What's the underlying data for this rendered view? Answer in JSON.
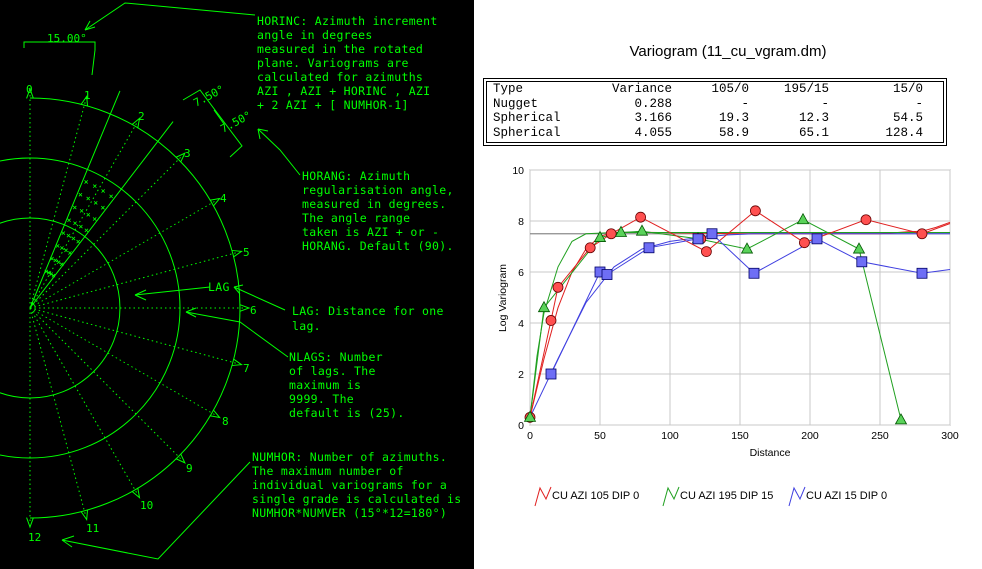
{
  "diagram": {
    "horinc_angle_label": "15.00°",
    "horang_labels": [
      "7.50°",
      "7.50°"
    ],
    "lag_label": "LAG",
    "azimuth_numbers": [
      "0",
      "1",
      "2",
      "3",
      "4",
      "5",
      "6",
      "7",
      "8",
      "9",
      "10",
      "11",
      "12"
    ],
    "horinc_text": [
      "HORINC: Azimuth increment",
      "angle in degrees",
      "measured in the rotated",
      "plane. Variograms are",
      "calculated for azimuths",
      "AZI , AZI + HORINC , AZI",
      "+ 2 AZI + [ NUMHOR-1]"
    ],
    "horang_text": [
      "HORANG: Azimuth",
      "regularisation angle,",
      "measured in degrees.",
      "The angle range",
      "taken is AZI + or -",
      "HORANG. Default (90)."
    ],
    "lag_text": [
      "LAG: Distance for one",
      "lag."
    ],
    "nlags_text": [
      "NLAGS: Number",
      "of lags. The",
      "maximum is",
      "9999. The",
      "default is (25)."
    ],
    "numhor_text": [
      "NUMHOR: Number of azimuths.",
      "The maximum number of",
      "individual variograms for a",
      "single grade is calculated is",
      "NUMHOR*NUMVER (15°*12=180°)"
    ]
  },
  "table": {
    "headers": [
      "Type",
      "Variance",
      "105/0",
      "195/15",
      "15/0"
    ],
    "rows": [
      [
        "Nugget",
        "0.288",
        "-",
        "-",
        "-"
      ],
      [
        "Spherical",
        "3.166",
        "19.3",
        "12.3",
        "54.5"
      ],
      [
        "Spherical",
        "4.055",
        "58.9",
        "65.1",
        "128.4"
      ]
    ]
  },
  "chart_data": {
    "type": "line",
    "title": "Variogram (11_cu_vgram.dm)",
    "xlabel": "Distance",
    "ylabel": "Log Variogram",
    "xlim": [
      0,
      300
    ],
    "ylim": [
      0,
      10
    ],
    "xticks": [
      0,
      50,
      100,
      150,
      200,
      250,
      300
    ],
    "yticks": [
      0,
      2,
      4,
      6,
      8,
      10
    ],
    "grid": true,
    "reference_line": 7.5,
    "legend_position": "bottom",
    "series": [
      {
        "name": "CU AZI 105 DIP 0",
        "color": "#e02020",
        "marker": "circle",
        "points": [
          [
            0,
            0.3
          ],
          [
            15,
            4.1
          ],
          [
            20,
            5.4
          ],
          [
            43,
            6.95
          ],
          [
            58,
            7.5
          ],
          [
            79,
            8.15
          ],
          [
            122,
            7.3
          ],
          [
            126,
            6.8
          ],
          [
            161,
            8.4
          ],
          [
            196,
            7.15
          ],
          [
            240,
            8.05
          ],
          [
            280,
            7.5
          ]
        ],
        "curve": [
          [
            0,
            0.3
          ],
          [
            10,
            2.6
          ],
          [
            20,
            4.6
          ],
          [
            30,
            6.0
          ],
          [
            40,
            6.9
          ],
          [
            50,
            7.4
          ],
          [
            60,
            7.55
          ],
          [
            80,
            7.56
          ],
          [
            150,
            7.5
          ],
          [
            250,
            7.5
          ],
          [
            270,
            7.58
          ],
          [
            280,
            7.6
          ],
          [
            290,
            7.75
          ],
          [
            300,
            7.95
          ]
        ]
      },
      {
        "name": "CU AZI 195 DIP 15",
        "color": "#20a020",
        "marker": "triangle",
        "points": [
          [
            0,
            0.3
          ],
          [
            10,
            4.6
          ],
          [
            50,
            7.35
          ],
          [
            65,
            7.55
          ],
          [
            80,
            7.6
          ],
          [
            120,
            7.3
          ],
          [
            155,
            6.9
          ],
          [
            195,
            8.05
          ],
          [
            235,
            6.9
          ],
          [
            265,
            0.2
          ]
        ],
        "curve": [
          [
            0,
            0.3
          ],
          [
            5,
            2.7
          ],
          [
            10,
            4.4
          ],
          [
            20,
            6.2
          ],
          [
            30,
            7.2
          ],
          [
            40,
            7.5
          ],
          [
            60,
            7.55
          ],
          [
            300,
            7.55
          ]
        ]
      },
      {
        "name": "CU AZI 15 DIP 0",
        "color": "#4040e0",
        "marker": "square",
        "points": [
          [
            15,
            2.0
          ],
          [
            50,
            6.0
          ],
          [
            55,
            5.9
          ],
          [
            85,
            6.95
          ],
          [
            120,
            7.3
          ],
          [
            130,
            7.5
          ],
          [
            160,
            5.95
          ],
          [
            205,
            7.3
          ],
          [
            237,
            6.4
          ],
          [
            280,
            5.95
          ]
        ],
        "curve": [
          [
            0,
            0.3
          ],
          [
            20,
            2.6
          ],
          [
            40,
            4.8
          ],
          [
            60,
            6.2
          ],
          [
            80,
            6.9
          ],
          [
            100,
            7.2
          ],
          [
            120,
            7.35
          ],
          [
            140,
            7.45
          ],
          [
            160,
            7.5
          ],
          [
            300,
            7.5
          ]
        ]
      }
    ],
    "extra_lines": [
      {
        "series": 1,
        "points": [
          [
            0,
            0.3
          ],
          [
            10,
            4.6
          ],
          [
            50,
            7.35
          ],
          [
            65,
            7.55
          ],
          [
            80,
            7.6
          ],
          [
            120,
            7.3
          ],
          [
            155,
            6.9
          ],
          [
            195,
            8.05
          ],
          [
            235,
            6.9
          ],
          [
            265,
            0.2
          ]
        ]
      },
      {
        "series": 0,
        "points": [
          [
            0,
            0.3
          ],
          [
            15,
            4.1
          ],
          [
            20,
            5.4
          ],
          [
            43,
            6.95
          ],
          [
            58,
            7.5
          ],
          [
            79,
            8.15
          ],
          [
            126,
            6.8
          ],
          [
            161,
            8.4
          ],
          [
            196,
            7.15
          ],
          [
            240,
            8.05
          ],
          [
            280,
            7.5
          ],
          [
            300,
            7.9
          ]
        ]
      },
      {
        "series": 2,
        "points": [
          [
            15,
            2.0
          ],
          [
            50,
            6.0
          ],
          [
            55,
            5.9
          ],
          [
            85,
            6.95
          ],
          [
            120,
            7.3
          ],
          [
            130,
            7.5
          ],
          [
            160,
            5.95
          ],
          [
            205,
            7.3
          ],
          [
            237,
            6.4
          ],
          [
            280,
            5.95
          ],
          [
            300,
            6.1
          ]
        ]
      }
    ]
  }
}
